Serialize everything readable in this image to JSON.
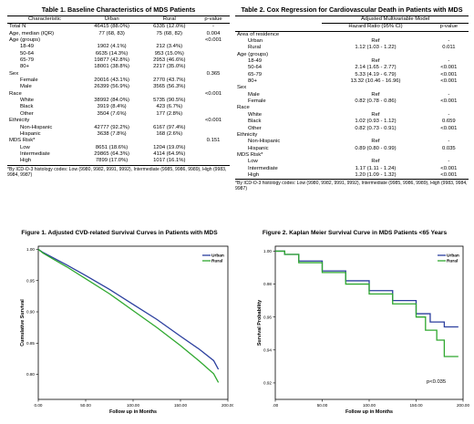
{
  "table1": {
    "title": "Table 1. Baseline Characteristics of MDS Patients",
    "columns": [
      "Characteristic",
      "Urban",
      "Rural",
      "p-value"
    ],
    "rows": [
      {
        "label": "Total N",
        "urban": "46415 (88.0%)",
        "rural": "6335 (12.0%)",
        "p": "-",
        "indent": false
      },
      {
        "label": "Age, median (IQR)",
        "urban": "77 (68, 83)",
        "rural": "75 (68, 82)",
        "p": "0.004",
        "indent": false
      },
      {
        "label": "Age (groups)",
        "urban": "",
        "rural": "",
        "p": "<0.001",
        "indent": false
      },
      {
        "label": "18-49",
        "urban": "1902 (4.1%)",
        "rural": "212 (3.4%)",
        "p": "",
        "indent": true
      },
      {
        "label": "50-64",
        "urban": "6635 (14.3%)",
        "rural": "953 (15.0%)",
        "p": "",
        "indent": true
      },
      {
        "label": "65-79",
        "urban": "19877 (42.8%)",
        "rural": "2953 (46.6%)",
        "p": "",
        "indent": true
      },
      {
        "label": "80+",
        "urban": "18001 (38.8%)",
        "rural": "2217 (35.0%)",
        "p": "",
        "indent": true
      },
      {
        "label": "Sex",
        "urban": "",
        "rural": "",
        "p": "0.365",
        "indent": false
      },
      {
        "label": "Female",
        "urban": "20016 (43.1%)",
        "rural": "2770 (43.7%)",
        "p": "",
        "indent": true
      },
      {
        "label": "Male",
        "urban": "26399 (56.9%)",
        "rural": "3565 (56.3%)",
        "p": "",
        "indent": true
      },
      {
        "label": "Race",
        "urban": "",
        "rural": "",
        "p": "<0.001",
        "indent": false
      },
      {
        "label": "White",
        "urban": "38992 (84.0%)",
        "rural": "5735 (90.5%)",
        "p": "",
        "indent": true
      },
      {
        "label": "Black",
        "urban": "3919 (8.4%)",
        "rural": "423 (6.7%)",
        "p": "",
        "indent": true
      },
      {
        "label": "Other",
        "urban": "3504 (7.6%)",
        "rural": "177 (2.8%)",
        "p": "",
        "indent": true
      },
      {
        "label": "Ethnicity",
        "urban": "",
        "rural": "",
        "p": "<0.001",
        "indent": false
      },
      {
        "label": "Non-Hispanic",
        "urban": "42777 (92.2%)",
        "rural": "6167 (97.4%)",
        "p": "",
        "indent": true
      },
      {
        "label": "Hispanic",
        "urban": "3638 (7.8%)",
        "rural": "168 (2.6%)",
        "p": "",
        "indent": true
      },
      {
        "label": "MDS Risk*",
        "urban": "",
        "rural": "",
        "p": "0.151",
        "indent": false
      },
      {
        "label": "Low",
        "urban": "8651 (18.6%)",
        "rural": "1204 (19.0%)",
        "p": "",
        "indent": true
      },
      {
        "label": "Intermediate",
        "urban": "29865 (64.3%)",
        "rural": "4114 (64.9%)",
        "p": "",
        "indent": true
      },
      {
        "label": "High",
        "urban": "7899 (17.0%)",
        "rural": "1017 (16.1%)",
        "p": "",
        "indent": true
      }
    ],
    "footnote": "*By ICD-O-3 histology codes: Low (9980, 9982, 9991, 9992), Intermediate (9985, 9986, 9989), High (9983, 9984, 9987)"
  },
  "table2": {
    "title": "Table 2. Cox Regression for Cardiovascular Death in Patients with MDS",
    "group_header": "Adjusted Multivariable Model",
    "columns": [
      "",
      "Hazard Ratio (95% CI)",
      "p-value"
    ],
    "rows": [
      {
        "label": "Area of residence",
        "hr": "",
        "p": "",
        "indent": false
      },
      {
        "label": "Urban",
        "hr": "Ref",
        "p": "-",
        "indent": true
      },
      {
        "label": "Rural",
        "hr": "1.12 (1.03 - 1.22)",
        "p": "0.011",
        "indent": true
      },
      {
        "label": "Age (groups)",
        "hr": "",
        "p": "",
        "indent": false
      },
      {
        "label": "18-49",
        "hr": "Ref",
        "p": "-",
        "indent": true
      },
      {
        "label": "50-64",
        "hr": "2.14 (1.65 - 2.77)",
        "p": "<0.001",
        "indent": true
      },
      {
        "label": "65-79",
        "hr": "5.33 (4.19 - 6.79)",
        "p": "<0.001",
        "indent": true
      },
      {
        "label": "80+",
        "hr": "13.32 (10.46 - 16.96)",
        "p": "<0.001",
        "indent": true
      },
      {
        "label": "Sex",
        "hr": "",
        "p": "",
        "indent": false
      },
      {
        "label": "Male",
        "hr": "Ref",
        "p": "-",
        "indent": true
      },
      {
        "label": "Female",
        "hr": "0.82 (0.78 - 0.86)",
        "p": "<0.001",
        "indent": true
      },
      {
        "label": "Race",
        "hr": "",
        "p": "",
        "indent": false
      },
      {
        "label": "White",
        "hr": "Ref",
        "p": "-",
        "indent": true
      },
      {
        "label": "Black",
        "hr": "1.02 (0.93 - 1.12)",
        "p": "0.659",
        "indent": true
      },
      {
        "label": "Other",
        "hr": "0.82 (0.73 - 0.91)",
        "p": "<0.001",
        "indent": true
      },
      {
        "label": "Ethnicity",
        "hr": "",
        "p": "",
        "indent": false
      },
      {
        "label": "Non-Hispanic",
        "hr": "Ref",
        "p": "-",
        "indent": true
      },
      {
        "label": "Hispanic",
        "hr": "0.89 (0.80 - 0.99)",
        "p": "0.035",
        "indent": true
      },
      {
        "label": "MDS Risk*",
        "hr": "",
        "p": "",
        "indent": false
      },
      {
        "label": "Low",
        "hr": "Ref",
        "p": "-",
        "indent": true
      },
      {
        "label": "Intermediate",
        "hr": "1.17 (1.11 - 1.24)",
        "p": "<0.001",
        "indent": true
      },
      {
        "label": "High",
        "hr": "1.20 (1.09 - 1.32)",
        "p": "<0.001",
        "indent": true
      }
    ],
    "footnote": "*By ICD-O-3 histology codes: Low (9980, 9982, 9991, 9992), Intermediate (9985, 9986, 9989), High (9983, 9984, 9987)"
  },
  "figure1_title": "Figure 1. Adjusted CVD-related Survival Curves in Patients with MDS",
  "figure2_title": "Figure 2. Kaplan Meier Survival Curve in MDS Patients <65 Years",
  "figure2_annotation": "p<0.035",
  "colors": {
    "urban": "#2b3f9e",
    "rural": "#2fa82f"
  },
  "chart_data": [
    {
      "type": "line",
      "title": "Figure 1. Adjusted CVD-related Survival Curves in Patients with MDS",
      "xlabel": "Follow up in Months",
      "ylabel": "Cumulative Survival",
      "xlim": [
        0,
        200
      ],
      "ylim": [
        0.76,
        1.005
      ],
      "xticks": [
        "0.00",
        "50.00",
        "100.00",
        "150.00",
        "200.00"
      ],
      "yticks": [
        "1.00",
        "0.95",
        "0.90",
        "0.85",
        "0.80"
      ],
      "legend": "top-right",
      "series": [
        {
          "name": "Urban",
          "x": [
            0,
            5,
            15,
            30,
            50,
            75,
            100,
            125,
            150,
            170,
            185,
            190
          ],
          "y": [
            1.0,
            0.995,
            0.987,
            0.975,
            0.958,
            0.936,
            0.912,
            0.888,
            0.861,
            0.84,
            0.822,
            0.808
          ]
        },
        {
          "name": "Rural",
          "x": [
            0,
            5,
            15,
            30,
            50,
            75,
            100,
            125,
            150,
            170,
            185,
            190
          ],
          "y": [
            1.0,
            0.994,
            0.985,
            0.972,
            0.953,
            0.929,
            0.902,
            0.875,
            0.846,
            0.821,
            0.801,
            0.787
          ]
        }
      ]
    },
    {
      "type": "line",
      "title": "Figure 2. Kaplan Meier Survival Curve in MDS Patients <65 Years",
      "xlabel": "Follow up in Months",
      "ylabel": "Survival Probability",
      "xlim": [
        0,
        200
      ],
      "ylim": [
        0.91,
        1.003
      ],
      "xticks": [
        ".00",
        "50.00",
        "100.00",
        "150.00",
        "200.00"
      ],
      "yticks": [
        "1.00",
        "0.98",
        "0.96",
        "0.94",
        "0.92"
      ],
      "legend": "top-right",
      "series": [
        {
          "name": "Urban",
          "x": [
            0,
            10,
            25,
            50,
            75,
            100,
            125,
            150,
            165,
            180,
            195
          ],
          "y": [
            1.0,
            0.998,
            0.994,
            0.988,
            0.982,
            0.976,
            0.97,
            0.962,
            0.957,
            0.954,
            0.954
          ]
        },
        {
          "name": "Rural",
          "x": [
            0,
            10,
            25,
            50,
            75,
            100,
            125,
            150,
            160,
            172,
            180,
            195
          ],
          "y": [
            1.0,
            0.998,
            0.993,
            0.987,
            0.98,
            0.974,
            0.968,
            0.96,
            0.952,
            0.946,
            0.936,
            0.936
          ]
        }
      ]
    }
  ]
}
